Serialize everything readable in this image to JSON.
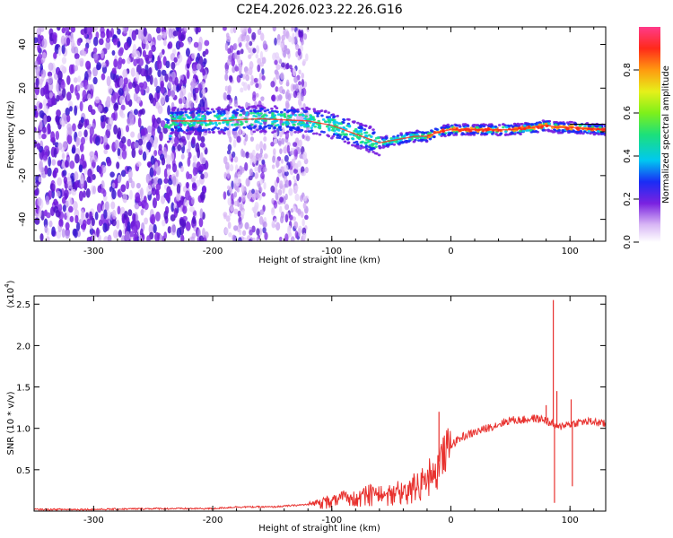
{
  "title": "C2E4.2026.023.22.26.G16",
  "chart_data": [
    {
      "type": "heatmap",
      "title": "C2E4.2026.023.22.26.G16",
      "xlabel": "Height of straight line (km)",
      "ylabel": "Frequency (Hz)",
      "xlim": [
        -350,
        130
      ],
      "ylim": [
        -50,
        48
      ],
      "x_ticks": [
        -300,
        -200,
        -100,
        0,
        100
      ],
      "x_tick_labels": [
        "-300",
        "-200",
        "-100",
        "0",
        "100"
      ],
      "y_ticks": [
        -40,
        -20,
        0,
        20,
        40
      ],
      "y_tick_labels": [
        "-40",
        "-20",
        "0",
        "20",
        "40"
      ],
      "ridge": {
        "description": "frequency of peak spectral amplitude vs height",
        "x": [
          -235,
          -200,
          -160,
          -120,
          -100,
          -80,
          -70,
          -60,
          -50,
          -40,
          -30,
          -20,
          -10,
          0,
          20,
          50,
          70,
          80,
          90,
          100,
          130
        ],
        "y": [
          5,
          5,
          6,
          5,
          3,
          -1,
          -3,
          -5,
          -4,
          -3,
          -2,
          -2,
          0,
          1,
          1,
          1,
          2,
          3,
          2,
          2,
          1
        ]
      },
      "colorbar": {
        "label": "Normalized spectral amplitude",
        "range": [
          0,
          1
        ],
        "ticks": [
          0.0,
          0.2,
          0.4,
          0.6,
          0.8
        ],
        "tick_labels": [
          "0.0",
          "0.2",
          "0.4",
          "0.6",
          "0.8"
        ]
      }
    },
    {
      "type": "line",
      "title": "",
      "xlabel": "Height of straight line (km)",
      "ylabel": "SNR (10 * v/v)",
      "y_multiplier": "(x10^4)",
      "y_multiplier_base": "(x10",
      "y_multiplier_exp": "4",
      "y_multiplier_close": ")",
      "xlim": [
        -350,
        130
      ],
      "ylim": [
        0,
        2.6
      ],
      "x_ticks": [
        -300,
        -200,
        -100,
        0,
        100
      ],
      "x_tick_labels": [
        "-300",
        "-200",
        "-100",
        "0",
        "100"
      ],
      "y_ticks": [
        0.5,
        1.0,
        1.5,
        2.0,
        2.5
      ],
      "y_tick_labels": [
        "0.5",
        "1.0",
        "1.5",
        "2.0",
        "2.5"
      ],
      "series": [
        {
          "name": "SNR",
          "color": "#e8312e",
          "x": [
            -350,
            -300,
            -250,
            -200,
            -180,
            -150,
            -120,
            -100,
            -80,
            -60,
            -40,
            -30,
            -20,
            -10,
            0,
            10,
            20,
            30,
            40,
            50,
            60,
            70,
            80,
            84,
            86,
            88,
            90,
            95,
            100,
            110,
            120,
            130
          ],
          "y": [
            0.02,
            0.02,
            0.03,
            0.03,
            0.05,
            0.05,
            0.08,
            0.15,
            0.22,
            0.25,
            0.28,
            0.35,
            0.45,
            0.6,
            0.8,
            0.9,
            0.95,
            1.0,
            1.05,
            1.1,
            1.1,
            1.12,
            1.1,
            1.05,
            1.05,
            1.02,
            1.0,
            1.05,
            1.05,
            1.08,
            1.08,
            1.05
          ]
        }
      ],
      "spikes": [
        {
          "x": -10,
          "y": 1.2
        },
        {
          "x": 80,
          "y": 1.28
        },
        {
          "x": 86,
          "y": 2.55
        },
        {
          "x": 87,
          "y": 0.1
        },
        {
          "x": 89,
          "y": 1.45
        },
        {
          "x": 101,
          "y": 1.35
        },
        {
          "x": 102,
          "y": 0.3
        }
      ]
    }
  ]
}
